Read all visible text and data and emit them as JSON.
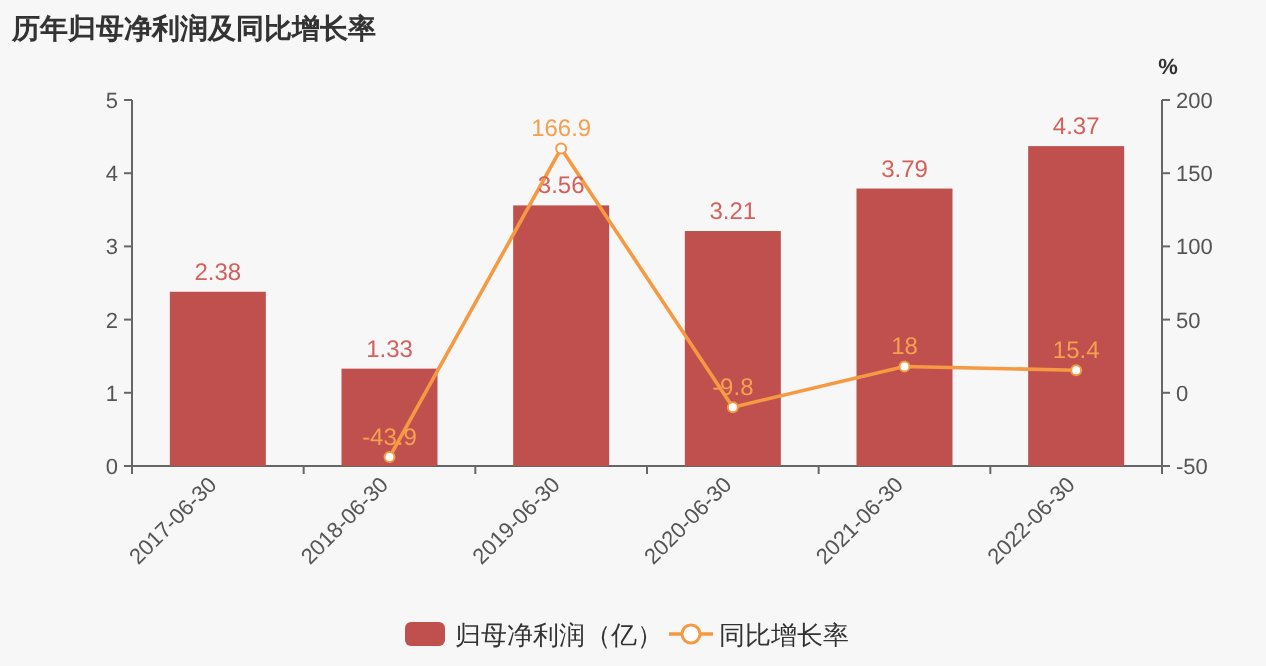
{
  "chart_data": {
    "type": "bar",
    "title": "历年归母净利润及同比增长率",
    "y2label": "%",
    "categories": [
      "2017-06-30",
      "2018-06-30",
      "2019-06-30",
      "2020-06-30",
      "2021-06-30",
      "2022-06-30"
    ],
    "series": [
      {
        "name": "归母净利润（亿）",
        "color": "#c0504d",
        "values": [
          2.38,
          1.33,
          3.56,
          3.21,
          3.79,
          4.37
        ]
      },
      {
        "name": "同比增长率",
        "type": "line",
        "axis": "y2",
        "color": "#f59a42",
        "marker": "circle",
        "values": [
          null,
          -43.9,
          166.9,
          -9.8,
          18,
          15.4
        ]
      }
    ],
    "ylim": [
      0,
      5
    ],
    "yticks": [
      0,
      1,
      2,
      3,
      4,
      5
    ],
    "y2lim": [
      -50,
      200
    ],
    "y2ticks": [
      -50,
      0,
      50,
      100,
      150,
      200
    ],
    "data_labels": true,
    "grid": false,
    "legend": "bottom"
  }
}
